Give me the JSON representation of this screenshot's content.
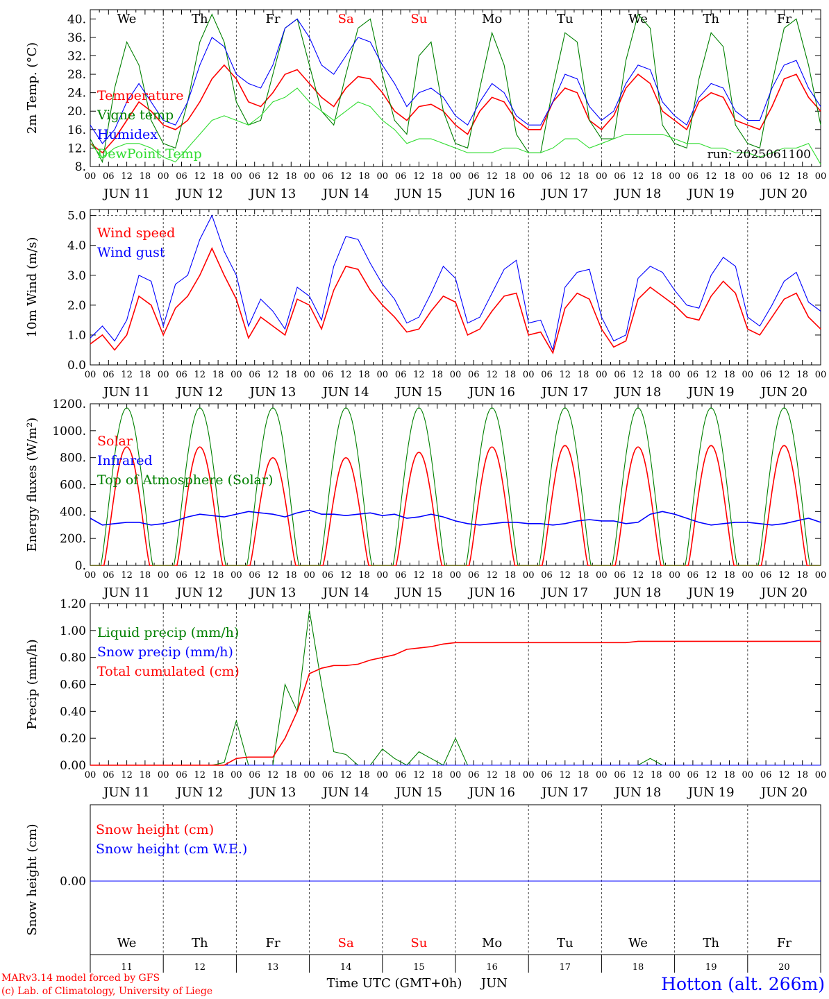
{
  "run_label": "run: 2025061100",
  "footer": {
    "credit1": "MARv3.14 model forced by GFS",
    "credit2": "(c) Lab. of Climatology, University of Liege",
    "station": "Hotton (alt. 266m)",
    "xlabel_time": "Time UTC (GMT+0h)",
    "xlabel_month": "JUN"
  },
  "days": [
    {
      "weekday": "We",
      "date": "JUN 11",
      "num": "11",
      "weekend": false
    },
    {
      "weekday": "Th",
      "date": "JUN 12",
      "num": "12",
      "weekend": false
    },
    {
      "weekday": "Fr",
      "date": "JUN 13",
      "num": "13",
      "weekend": false
    },
    {
      "weekday": "Sa",
      "date": "JUN 14",
      "num": "14",
      "weekend": true
    },
    {
      "weekday": "Su",
      "date": "JUN 15",
      "num": "15",
      "weekend": true
    },
    {
      "weekday": "Mo",
      "date": "JUN 16",
      "num": "16",
      "weekend": false
    },
    {
      "weekday": "Tu",
      "date": "JUN 17",
      "num": "17",
      "weekend": false
    },
    {
      "weekday": "We",
      "date": "JUN 18",
      "num": "18",
      "weekend": false
    },
    {
      "weekday": "Th",
      "date": "JUN 19",
      "num": "19",
      "weekend": false
    },
    {
      "weekday": "Fr",
      "date": "JUN 20",
      "num": "20",
      "weekend": false
    }
  ],
  "hour_ticks": [
    "00",
    "06",
    "12",
    "18"
  ],
  "hour_end": "00",
  "colors": {
    "red": "#ff0000",
    "green": "#008000",
    "blue": "#0000ff",
    "lightgreen": "#33dd33"
  },
  "chart_data": [
    {
      "type": "line",
      "ylabel": "2m Temp. (°C)",
      "ylim": [
        8,
        42
      ],
      "yticks": [
        8,
        12,
        16,
        20,
        24,
        28,
        32,
        36,
        40
      ],
      "ytick_labels": [
        "8.",
        "12.",
        "16.",
        "20.",
        "24.",
        "28.",
        "32.",
        "36.",
        "40."
      ],
      "legend": [
        "Temperature",
        "Vigne temp",
        "Humidex",
        "DewPoint Temp"
      ],
      "series": [
        {
          "name": "Temperature",
          "color": "red",
          "values": [
            13,
            11,
            14,
            18,
            22,
            20,
            17,
            16,
            18,
            22,
            27,
            30,
            27,
            22,
            21,
            24,
            28,
            29,
            26,
            23,
            21,
            25,
            27.5,
            27,
            24,
            20,
            18,
            21,
            21.5,
            20,
            17,
            15,
            20,
            23,
            22,
            18,
            16,
            16,
            22,
            25,
            24,
            18,
            16,
            19,
            25,
            28,
            26,
            20,
            18,
            16,
            22,
            24,
            23,
            18,
            17,
            16,
            21,
            27,
            28,
            23,
            20
          ]
        },
        {
          "name": "Vigne temp",
          "color": "green",
          "values": [
            14,
            9,
            25,
            35,
            30,
            18,
            13,
            12,
            22,
            35,
            41,
            35,
            22,
            17,
            18,
            28,
            38,
            40,
            30,
            20,
            17,
            28,
            38,
            40,
            28,
            18,
            15,
            32,
            35,
            20,
            13,
            12,
            25,
            37,
            30,
            15,
            11,
            11,
            25,
            37,
            35,
            18,
            14,
            14,
            31,
            41,
            38,
            17,
            13,
            12,
            27,
            37,
            34,
            17,
            13,
            12,
            26,
            38,
            40,
            30,
            17
          ]
        },
        {
          "name": "Humidex",
          "color": "blue",
          "values": [
            17,
            13,
            16,
            22,
            26,
            22,
            18,
            17,
            22,
            30,
            36,
            34,
            28,
            26,
            25,
            30,
            38,
            40,
            36,
            30,
            28,
            32,
            36,
            35,
            30,
            26,
            21,
            24,
            25,
            23,
            19,
            17,
            22,
            26,
            24,
            19,
            17,
            17,
            22,
            28,
            27,
            21,
            18,
            20,
            26,
            30,
            29,
            22,
            19,
            17,
            23,
            26,
            25,
            20,
            18,
            18,
            25,
            30,
            31,
            25,
            21
          ]
        },
        {
          "name": "DewPoint Temp",
          "color": "lightgreen",
          "values": [
            13,
            10,
            12,
            13,
            13,
            12,
            10,
            9,
            12,
            15,
            18,
            19,
            18,
            17,
            19,
            22,
            23,
            25,
            22,
            20,
            18,
            20,
            22,
            21,
            18,
            16,
            13,
            14,
            14,
            13,
            12,
            11,
            11,
            11,
            12,
            12,
            11,
            11,
            12,
            14,
            14,
            12,
            13,
            14,
            15,
            15,
            15,
            15,
            14,
            13,
            13,
            12,
            12,
            11,
            11,
            10,
            11,
            12,
            12,
            13,
            8.5
          ]
        }
      ]
    },
    {
      "type": "line",
      "ylabel": "10m Wind (m/s)",
      "ylim": [
        0,
        5.2
      ],
      "yticks": [
        0,
        1,
        2,
        3,
        4,
        5
      ],
      "ytick_labels": [
        "0.0",
        "1.0",
        "2.0",
        "3.0",
        "4.0",
        "5.0"
      ],
      "dashed_reference": 5.0,
      "legend": [
        "Wind speed",
        "Wind gust"
      ],
      "series": [
        {
          "name": "Wind speed",
          "color": "red",
          "values": [
            0.7,
            1.0,
            0.5,
            1.0,
            2.3,
            2.0,
            1.0,
            1.9,
            2.3,
            3.0,
            3.9,
            3.0,
            2.2,
            0.9,
            1.6,
            1.3,
            1.0,
            2.2,
            2.0,
            1.2,
            2.5,
            3.3,
            3.2,
            2.5,
            2.0,
            1.6,
            1.1,
            1.2,
            1.8,
            2.3,
            2.1,
            1.0,
            1.2,
            1.8,
            2.3,
            2.4,
            1.0,
            1.1,
            0.4,
            1.9,
            2.4,
            2.2,
            1.2,
            0.6,
            0.8,
            2.2,
            2.6,
            2.3,
            2.0,
            1.6,
            1.5,
            2.3,
            2.8,
            2.4,
            1.2,
            1.0,
            1.6,
            2.2,
            2.4,
            1.6,
            1.2
          ]
        },
        {
          "name": "Wind gust",
          "color": "blue",
          "values": [
            0.9,
            1.3,
            0.8,
            1.5,
            3.0,
            2.8,
            1.3,
            2.7,
            3.0,
            4.2,
            5.0,
            3.8,
            3.0,
            1.3,
            2.2,
            1.8,
            1.2,
            2.6,
            2.3,
            1.5,
            3.3,
            4.3,
            4.2,
            3.4,
            2.7,
            2.2,
            1.4,
            1.6,
            2.4,
            3.3,
            2.9,
            1.4,
            1.6,
            2.4,
            3.2,
            3.5,
            1.4,
            1.5,
            0.5,
            2.6,
            3.1,
            3.2,
            1.6,
            0.8,
            1.0,
            2.9,
            3.3,
            3.1,
            2.5,
            2.0,
            1.9,
            3.0,
            3.6,
            3.3,
            1.6,
            1.3,
            2.0,
            2.8,
            3.1,
            2.1,
            1.8
          ]
        }
      ]
    },
    {
      "type": "line",
      "ylabel": "Energy fluxes (W/m²)",
      "ylim": [
        0,
        1200
      ],
      "yticks": [
        0,
        200,
        400,
        600,
        800,
        1000,
        1200
      ],
      "ytick_labels": [
        "0.",
        "200.",
        "400.",
        "600.",
        "800.",
        "1000.",
        "1200."
      ],
      "legend": [
        "Solar",
        "Infrared",
        "Top of Atmosphere (Solar)"
      ],
      "series": [
        {
          "name": "Solar",
          "color": "red",
          "peaks": [
            880,
            880,
            800,
            800,
            840,
            880,
            890,
            880,
            890,
            890
          ]
        },
        {
          "name": "Infrared",
          "color": "blue",
          "values": [
            350,
            300,
            310,
            320,
            320,
            300,
            310,
            330,
            360,
            380,
            370,
            360,
            380,
            400,
            390,
            380,
            360,
            390,
            410,
            380,
            380,
            370,
            380,
            390,
            370,
            380,
            350,
            360,
            380,
            360,
            330,
            310,
            300,
            310,
            320,
            320,
            310,
            310,
            300,
            310,
            330,
            340,
            330,
            330,
            310,
            320,
            380,
            400,
            380,
            350,
            320,
            300,
            310,
            320,
            320,
            310,
            300,
            310,
            330,
            350,
            320
          ]
        },
        {
          "name": "Top of Atmosphere (Solar)",
          "color": "green",
          "peaks": [
            1170,
            1170,
            1170,
            1170,
            1170,
            1170,
            1170,
            1170,
            1170,
            1170
          ]
        }
      ]
    },
    {
      "type": "line",
      "ylabel": "Precip (mm/h)",
      "ylim": [
        0,
        1.2
      ],
      "yticks": [
        0,
        0.2,
        0.4,
        0.6,
        0.8,
        1.0,
        1.2
      ],
      "ytick_labels": [
        "0.00",
        "0.20",
        "0.40",
        "0.60",
        "0.80",
        "1.00",
        "1.20"
      ],
      "legend": [
        "Liquid precip (mm/h)",
        "Snow precip (mm/h)",
        "Total cumulated (cm)"
      ],
      "series": [
        {
          "name": "Liquid precip (mm/h)",
          "color": "green",
          "values": [
            0,
            0,
            0,
            0,
            0,
            0,
            0,
            0,
            0,
            0,
            0,
            0.02,
            0.33,
            0,
            0,
            0,
            0.6,
            0.4,
            1.15,
            0.6,
            0.1,
            0.08,
            0,
            0,
            0.12,
            0.05,
            0,
            0.1,
            0.05,
            0,
            0.2,
            0,
            0,
            0,
            0,
            0,
            0,
            0,
            0,
            0,
            0,
            0,
            0,
            0,
            0,
            0,
            0.05,
            0,
            0,
            0,
            0,
            0,
            0,
            0,
            0,
            0,
            0,
            0,
            0,
            0,
            0
          ]
        },
        {
          "name": "Snow precip (mm/h)",
          "color": "blue",
          "values": [
            0,
            0,
            0,
            0,
            0,
            0,
            0,
            0,
            0,
            0,
            0,
            0,
            0,
            0,
            0,
            0,
            0,
            0,
            0,
            0,
            0,
            0,
            0,
            0,
            0,
            0,
            0,
            0,
            0,
            0,
            0,
            0,
            0,
            0,
            0,
            0,
            0,
            0,
            0,
            0,
            0,
            0,
            0,
            0,
            0,
            0,
            0,
            0,
            0,
            0,
            0,
            0,
            0,
            0,
            0,
            0,
            0,
            0,
            0,
            0,
            0
          ]
        },
        {
          "name": "Total cumulated (cm)",
          "color": "red",
          "values": [
            0,
            0,
            0,
            0,
            0,
            0,
            0,
            0,
            0,
            0,
            0,
            0,
            0.05,
            0.06,
            0.06,
            0.06,
            0.2,
            0.4,
            0.68,
            0.72,
            0.74,
            0.74,
            0.75,
            0.78,
            0.8,
            0.82,
            0.86,
            0.87,
            0.88,
            0.9,
            0.91,
            0.91,
            0.91,
            0.91,
            0.91,
            0.91,
            0.91,
            0.91,
            0.91,
            0.91,
            0.91,
            0.91,
            0.91,
            0.91,
            0.91,
            0.92,
            0.92,
            0.92,
            0.92,
            0.92,
            0.92,
            0.92,
            0.92,
            0.92,
            0.92,
            0.92,
            0.92,
            0.92,
            0.92,
            0.92,
            0.92
          ]
        }
      ]
    },
    {
      "type": "line",
      "ylabel": "Snow height (cm)",
      "yticks": [
        0
      ],
      "ytick_labels": [
        "0.00"
      ],
      "legend": [
        "Snow height (cm)",
        "Snow height (cm W.E.)"
      ],
      "series": [
        {
          "name": "Snow height (cm)",
          "color": "red",
          "values": [
            0,
            0
          ]
        },
        {
          "name": "Snow height (cm W.E.)",
          "color": "blue",
          "values": [
            0,
            0
          ]
        }
      ]
    }
  ]
}
